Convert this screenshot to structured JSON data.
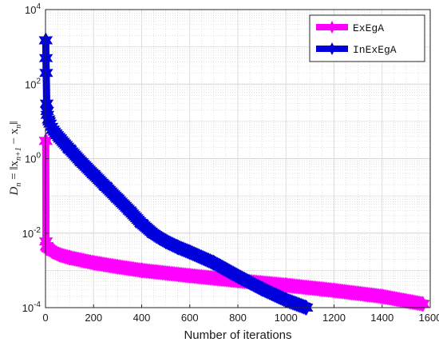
{
  "chart_data": {
    "type": "line",
    "xlabel": "Number of iterations",
    "ylabel": "D_n = ||x_{n+1} − x_n||",
    "xlim": [
      0,
      1600
    ],
    "ylim": [
      0.0001,
      10000
    ],
    "yscale": "log",
    "grid": "on",
    "minor_grid": "on",
    "legend_position": "top-right",
    "x_ticks": [
      "0",
      "200",
      "400",
      "600",
      "800",
      "1000",
      "1200",
      "1400",
      "1600"
    ],
    "y_ticks": [
      {
        "base": "10",
        "exp": "-4",
        "value": 0.0001
      },
      {
        "base": "10",
        "exp": "-2",
        "value": 0.01
      },
      {
        "base": "10",
        "exp": "0",
        "value": 1
      },
      {
        "base": "10",
        "exp": "2",
        "value": 100
      },
      {
        "base": "10",
        "exp": "4",
        "value": 10000
      }
    ],
    "series": [
      {
        "name": "ExEgA",
        "color": "#ff00ff",
        "marker": "hexagram",
        "x": [
          1,
          2,
          5,
          10,
          30,
          60,
          100,
          200,
          300,
          400,
          600,
          800,
          1000,
          1200,
          1400,
          1570
        ],
        "y": [
          3.0,
          0.006,
          0.0045,
          0.004,
          0.0032,
          0.0026,
          0.0022,
          0.0016,
          0.00125,
          0.001,
          0.00072,
          0.00053,
          0.0004,
          0.00029,
          0.0002,
          0.000125
        ]
      },
      {
        "name": "InExEgA",
        "color": "#0000dd",
        "marker": "hexagram",
        "x": [
          1,
          2,
          3,
          5,
          8,
          15,
          30,
          60,
          100,
          150,
          200,
          250,
          300,
          350,
          400,
          450,
          500,
          550,
          600,
          700,
          800,
          900,
          1000,
          1085
        ],
        "y": [
          1500,
          500,
          200,
          30,
          15,
          10,
          6,
          3.5,
          1.8,
          0.8,
          0.38,
          0.18,
          0.085,
          0.04,
          0.018,
          0.0095,
          0.006,
          0.0042,
          0.0031,
          0.0016,
          0.0007,
          0.00032,
          0.00016,
          0.0001
        ]
      }
    ]
  }
}
